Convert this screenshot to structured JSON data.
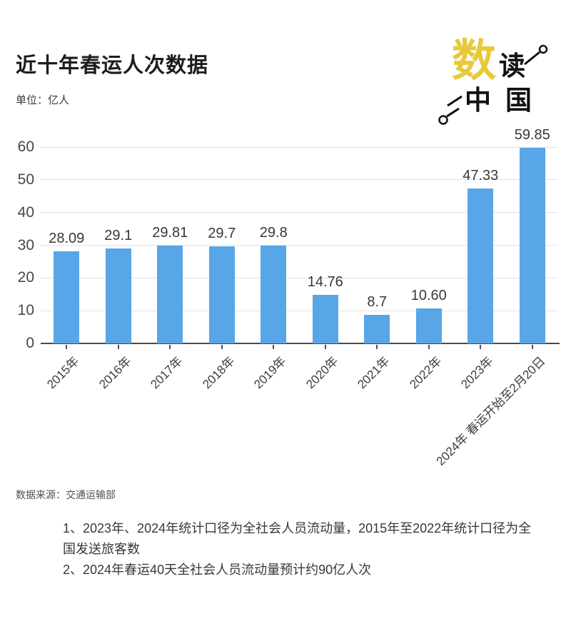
{
  "header": {
    "title": "近十年春运人次数据",
    "unit_label": "单位：亿人"
  },
  "logo": {
    "char_accent": "数",
    "char_second": "读",
    "chars_bottom": "中国",
    "accent_color": "#E8C93C"
  },
  "chart_data": {
    "type": "bar",
    "title": "近十年春运人次数据",
    "unit": "亿人",
    "categories": [
      "2015年",
      "2016年",
      "2017年",
      "2018年",
      "2019年",
      "2020年",
      "2021年",
      "2022年",
      "2023年",
      "2024年 春运开始至2月20日"
    ],
    "values": [
      28.09,
      29.1,
      29.81,
      29.7,
      29.8,
      14.76,
      8.7,
      10.6,
      47.33,
      59.85
    ],
    "value_labels": [
      "28.09",
      "29.1",
      "29.81",
      "29.7",
      "29.8",
      "14.76",
      "8.7",
      "10.60",
      "47.33",
      "59.85"
    ],
    "yticks": [
      0,
      10,
      20,
      30,
      40,
      50,
      60
    ],
    "ylim": [
      0,
      60
    ],
    "xlabel": "",
    "ylabel": "亿人",
    "grid": true,
    "legend": false,
    "bar_color": "#58A6E8",
    "grid_color": "#E3E3E3",
    "axis_color": "#4B4B4B"
  },
  "footer": {
    "source": "数据来源：交通运输部",
    "notes": [
      "1、2023年、2024年统计口径为全社会人员流动量，2015年至2022年统计口径为全国发送旅客数",
      "2、2024年春运40天全社会人员流动量预计约90亿人次"
    ]
  }
}
